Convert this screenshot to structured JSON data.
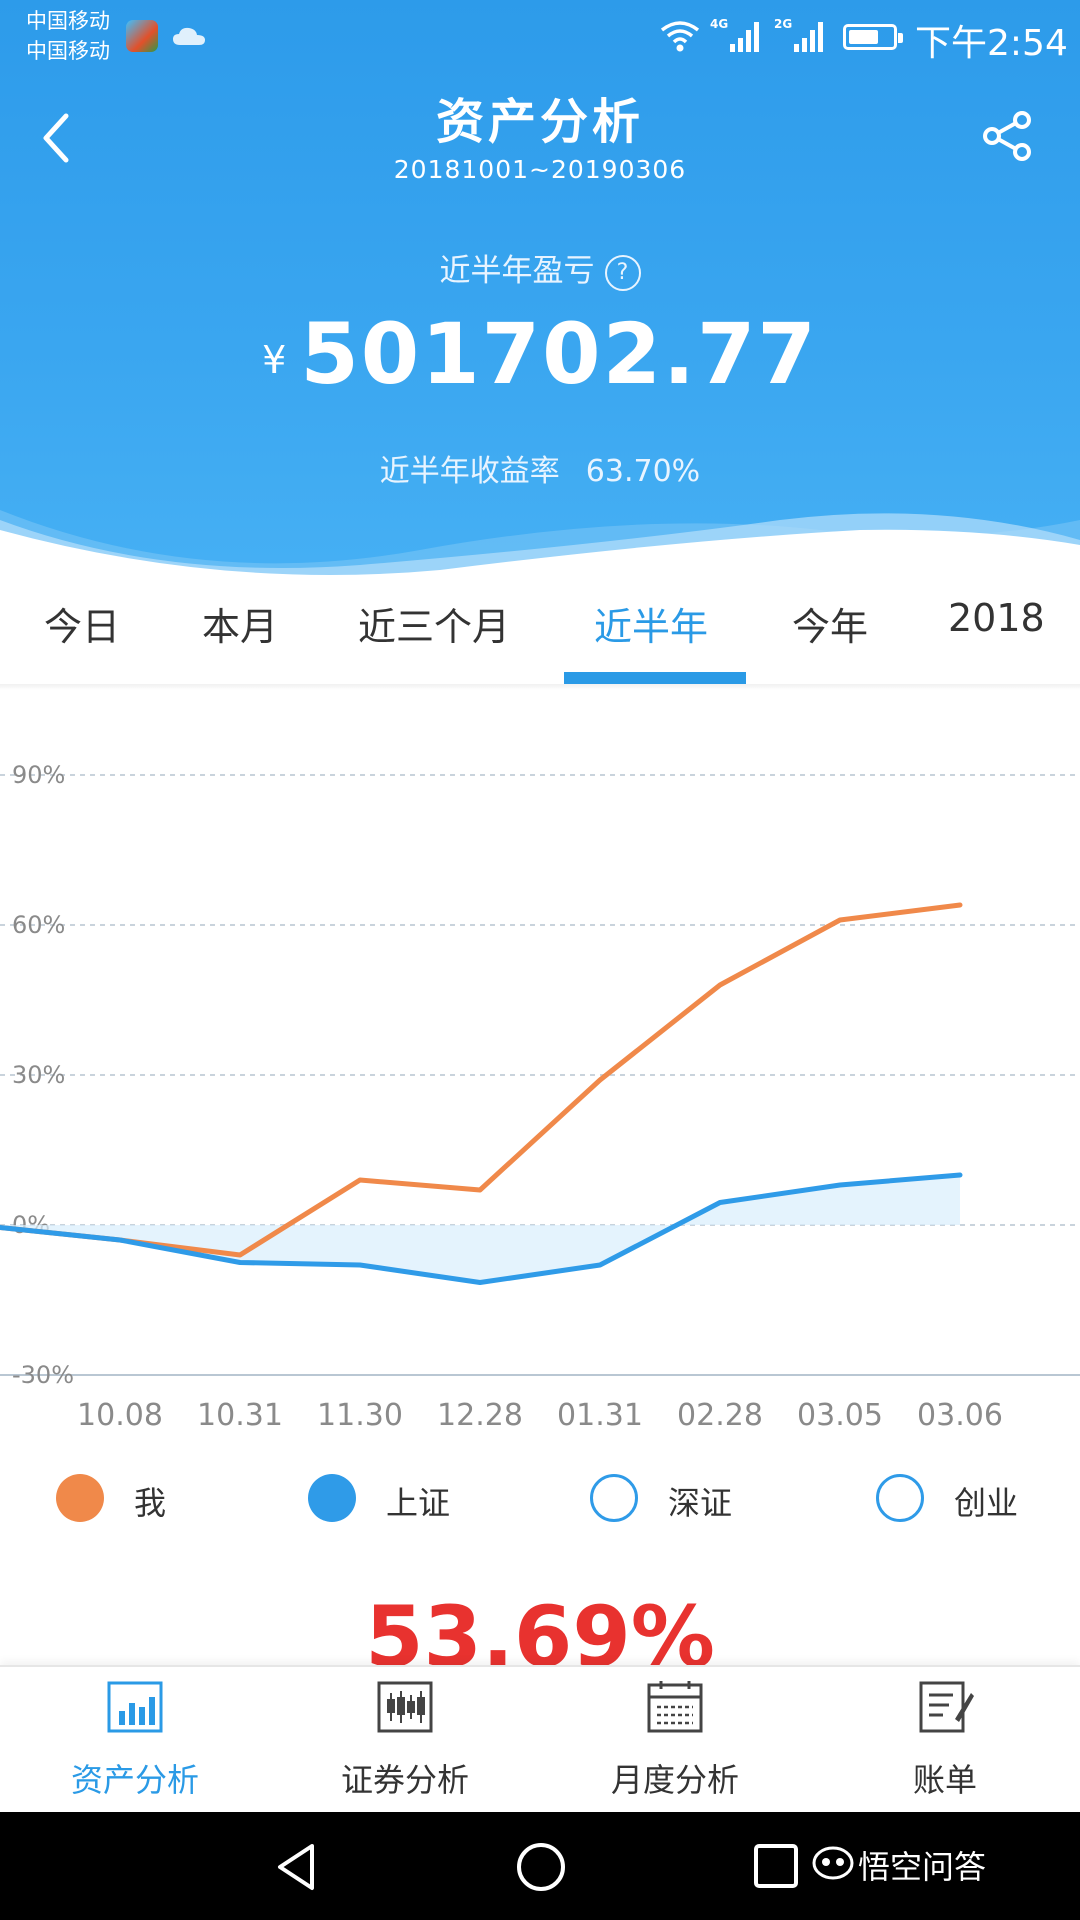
{
  "status_bar": {
    "carrier_1": "中国移动",
    "carrier_2": "中国移动",
    "net_1": "4G",
    "net_2": "2G",
    "time": "下午2:54"
  },
  "header": {
    "title": "资产分析",
    "date_range": "20181001~20190306",
    "profit_label": "近半年盈亏",
    "help_glyph": "?",
    "currency": "¥",
    "profit_value": "501702.77",
    "rate_label": "近半年收益率",
    "rate_value": "63.70%"
  },
  "tabs": [
    {
      "label": "今日"
    },
    {
      "label": "本月"
    },
    {
      "label": "近三个月"
    },
    {
      "label": "近半年"
    },
    {
      "label": "今年"
    },
    {
      "label": "2018"
    }
  ],
  "active_tab": 3,
  "chart_data": {
    "type": "line",
    "categories": [
      "10.08",
      "10.31",
      "11.30",
      "12.28",
      "01.31",
      "02.28",
      "03.05",
      "03.06"
    ],
    "y_ticks": [
      "90%",
      "60%",
      "30%",
      "0%",
      "-30%"
    ],
    "ylim": [
      -30,
      90
    ],
    "grid": true,
    "series": [
      {
        "name": "我",
        "color": "#f0894a",
        "values": [
          -3,
          -6,
          9,
          7,
          29,
          48,
          61,
          64
        ]
      },
      {
        "name": "上证",
        "color": "#2f9be8",
        "values": [
          -3,
          -7.5,
          -8,
          -11.5,
          -8,
          4.5,
          8,
          10
        ]
      }
    ],
    "legend_placement": "bottom"
  },
  "legend": [
    {
      "label": "我",
      "color": "#f0894a",
      "filled": true
    },
    {
      "label": "上证",
      "color": "#2f9be8",
      "filled": true
    },
    {
      "label": "深证",
      "color": "#2f9be8",
      "filled": false
    },
    {
      "label": "创业",
      "color": "#2f9be8",
      "filled": false
    }
  ],
  "summary_percent": "53.69%",
  "bottom_nav": [
    {
      "label": "资产分析",
      "icon": "bar-chart-icon"
    },
    {
      "label": "证券分析",
      "icon": "candlestick-icon"
    },
    {
      "label": "月度分析",
      "icon": "calendar-icon"
    },
    {
      "label": "账单",
      "icon": "bill-icon"
    }
  ],
  "watermark": "悟空问答",
  "colors": {
    "header_blue": "#2d9bea",
    "accent_blue": "#2a9ae6",
    "orange": "#f0894a",
    "red": "#e8322f"
  }
}
